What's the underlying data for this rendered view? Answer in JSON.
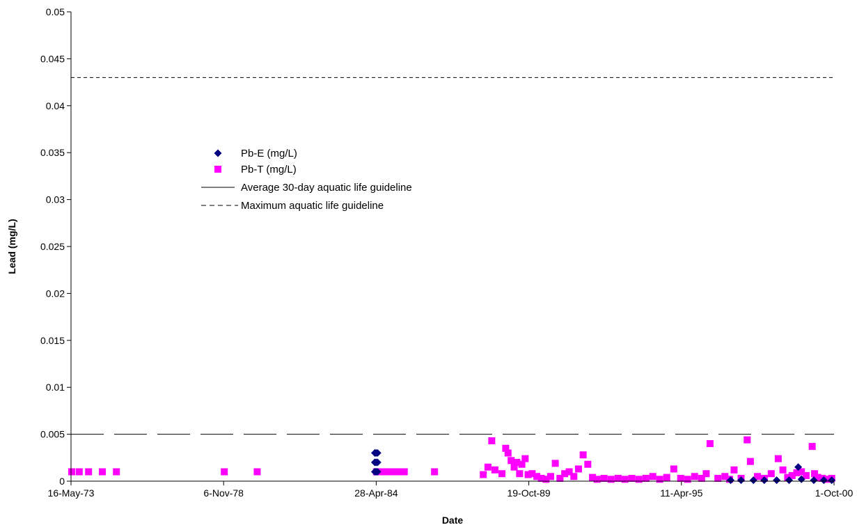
{
  "chart_data": {
    "type": "scatter",
    "title": "",
    "xlabel": "Date",
    "ylabel": "Lead (mg/L)",
    "x_type": "date",
    "xlim": [
      "1973-05-16",
      "2000-10-01"
    ],
    "ylim": [
      0,
      0.05
    ],
    "y_ticks": [
      0,
      0.005,
      0.01,
      0.015,
      0.02,
      0.025,
      0.03,
      0.035,
      0.04,
      0.045,
      0.05
    ],
    "x_tick_labels": [
      "16-May-73",
      "6-Nov-78",
      "28-Apr-84",
      "19-Oct-89",
      "11-Apr-95",
      "1-Oct-00"
    ],
    "x_tick_dates": [
      "1973-05-16",
      "1978-11-06",
      "1984-04-28",
      "1989-10-19",
      "1995-04-11",
      "2000-10-01"
    ],
    "grid": false,
    "legend_position": "center-left",
    "series": [
      {
        "name": "Pb-E (mg/L)",
        "marker": "diamond",
        "color": "#000080",
        "points": [
          [
            "1984-04-10",
            0.003
          ],
          [
            "1984-04-25",
            0.003
          ],
          [
            "1984-05-15",
            0.003
          ],
          [
            "1984-04-10",
            0.002
          ],
          [
            "1984-04-25",
            0.002
          ],
          [
            "1984-05-15",
            0.002
          ],
          [
            "1984-04-10",
            0.001
          ],
          [
            "1984-04-25",
            0.001
          ],
          [
            "1984-05-15",
            0.001
          ],
          [
            "1997-01-15",
            0.0001
          ],
          [
            "1997-06-01",
            0.0001
          ],
          [
            "1997-11-10",
            0.0001
          ],
          [
            "1998-04-01",
            0.0001
          ],
          [
            "1998-09-10",
            0.0001
          ],
          [
            "1999-02-20",
            0.0001
          ],
          [
            "1999-06-20",
            0.0015
          ],
          [
            "1999-08-01",
            0.0002
          ],
          [
            "2000-01-10",
            0.0001
          ],
          [
            "2000-05-20",
            0.0001
          ],
          [
            "2000-09-01",
            0.0001
          ]
        ]
      },
      {
        "name": "Pb-T (mg/L)",
        "marker": "square",
        "color": "#FF00FF",
        "points": [
          [
            "1973-05-25",
            0.001
          ],
          [
            "1973-09-01",
            0.001
          ],
          [
            "1974-01-01",
            0.001
          ],
          [
            "1974-07-01",
            0.001
          ],
          [
            "1975-01-01",
            0.001
          ],
          [
            "1978-11-15",
            0.001
          ],
          [
            "1980-01-20",
            0.001
          ],
          [
            "1984-05-01",
            0.001
          ],
          [
            "1984-07-01",
            0.001
          ],
          [
            "1984-09-01",
            0.001
          ],
          [
            "1984-11-01",
            0.001
          ],
          [
            "1985-01-01",
            0.001
          ],
          [
            "1985-03-01",
            0.001
          ],
          [
            "1985-05-01",
            0.001
          ],
          [
            "1986-06-01",
            0.001
          ],
          [
            "1988-03-01",
            0.0007
          ],
          [
            "1988-05-01",
            0.0015
          ],
          [
            "1988-06-20",
            0.0043
          ],
          [
            "1988-08-01",
            0.0012
          ],
          [
            "1988-11-01",
            0.0008
          ],
          [
            "1988-12-20",
            0.0035
          ],
          [
            "1989-01-20",
            0.003
          ],
          [
            "1989-03-01",
            0.0022
          ],
          [
            "1989-04-10",
            0.0015
          ],
          [
            "1989-05-15",
            0.002
          ],
          [
            "1989-06-20",
            0.0008
          ],
          [
            "1989-07-20",
            0.0018
          ],
          [
            "1989-09-01",
            0.0024
          ],
          [
            "1989-10-10",
            0.0007
          ],
          [
            "1989-12-01",
            0.0008
          ],
          [
            "1990-02-01",
            0.0005
          ],
          [
            "1990-04-01",
            0.0003
          ],
          [
            "1990-06-01",
            0.0002
          ],
          [
            "1990-08-01",
            0.0005
          ],
          [
            "1990-10-01",
            0.0019
          ],
          [
            "1990-12-01",
            0.0003
          ],
          [
            "1991-02-01",
            0.0008
          ],
          [
            "1991-04-01",
            0.001
          ],
          [
            "1991-06-01",
            0.0005
          ],
          [
            "1991-08-01",
            0.0013
          ],
          [
            "1991-10-01",
            0.0028
          ],
          [
            "1991-12-01",
            0.0018
          ],
          [
            "1992-02-01",
            0.0004
          ],
          [
            "1992-04-01",
            0.0002
          ],
          [
            "1992-07-01",
            0.0003
          ],
          [
            "1992-10-01",
            0.0002
          ],
          [
            "1993-01-01",
            0.0003
          ],
          [
            "1993-04-01",
            0.0002
          ],
          [
            "1993-07-01",
            0.0003
          ],
          [
            "1993-10-01",
            0.0002
          ],
          [
            "1994-01-01",
            0.0003
          ],
          [
            "1994-04-01",
            0.0005
          ],
          [
            "1994-07-01",
            0.0002
          ],
          [
            "1994-10-01",
            0.0004
          ],
          [
            "1995-01-01",
            0.0013
          ],
          [
            "1995-04-01",
            0.0003
          ],
          [
            "1995-07-01",
            0.0002
          ],
          [
            "1995-10-01",
            0.0005
          ],
          [
            "1996-01-01",
            0.0003
          ],
          [
            "1996-03-01",
            0.0008
          ],
          [
            "1996-04-20",
            0.004
          ],
          [
            "1996-08-01",
            0.0003
          ],
          [
            "1996-11-01",
            0.0005
          ],
          [
            "1997-01-01",
            0.0002
          ],
          [
            "1997-03-01",
            0.0012
          ],
          [
            "1997-06-01",
            0.0003
          ],
          [
            "1997-08-20",
            0.0044
          ],
          [
            "1997-10-01",
            0.0021
          ],
          [
            "1998-01-01",
            0.0005
          ],
          [
            "1998-04-01",
            0.0003
          ],
          [
            "1998-07-01",
            0.0008
          ],
          [
            "1998-10-01",
            0.0024
          ],
          [
            "1998-12-01",
            0.0012
          ],
          [
            "1999-02-01",
            0.0004
          ],
          [
            "1999-04-01",
            0.0006
          ],
          [
            "1999-06-01",
            0.0009
          ],
          [
            "1999-08-01",
            0.001
          ],
          [
            "1999-10-01",
            0.0006
          ],
          [
            "1999-12-20",
            0.0037
          ],
          [
            "2000-01-20",
            0.0008
          ],
          [
            "2000-03-01",
            0.0004
          ],
          [
            "2000-05-01",
            0.0003
          ],
          [
            "2000-07-01",
            0.0002
          ],
          [
            "2000-09-01",
            0.0003
          ]
        ]
      },
      {
        "name": "Average 30-day aquatic life guideline",
        "line_style": "long-dash",
        "color": "#000000",
        "value": 0.005
      },
      {
        "name": "Maximum aquatic life guideline",
        "line_style": "short-dash",
        "color": "#000000",
        "value": 0.043
      }
    ]
  }
}
